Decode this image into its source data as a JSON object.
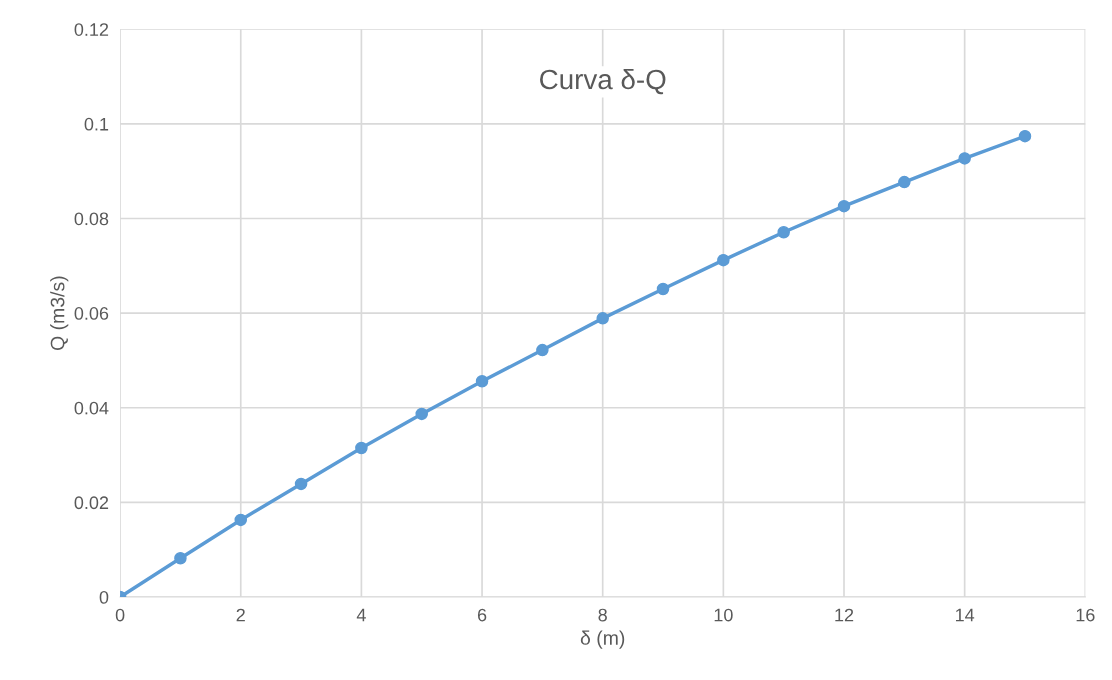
{
  "chart_data": {
    "type": "line",
    "title": "Curva δ-Q",
    "xlabel": "δ (m)",
    "ylabel": "Q (m3/s)",
    "x": [
      0,
      1,
      2,
      3,
      4,
      5,
      6,
      7,
      8,
      9,
      10,
      11,
      12,
      13,
      14,
      15
    ],
    "series": [
      {
        "color": "#5b9bd5",
        "values": [
          0,
          0.0082,
          0.0163,
          0.0239,
          0.0315,
          0.0387,
          0.0456,
          0.0522,
          0.0589,
          0.0651,
          0.0712,
          0.0771,
          0.0826,
          0.0877,
          0.0927,
          0.0974
        ]
      }
    ],
    "xlim": [
      0,
      16
    ],
    "xticks": [
      0,
      2,
      4,
      6,
      8,
      10,
      12,
      14,
      16
    ],
    "ylim": [
      0,
      0.12
    ],
    "yticks": [
      0,
      0.02,
      0.04,
      0.06,
      0.08,
      {
        "value": 0.1,
        "label": "0.1"
      },
      0.12
    ],
    "grid": true,
    "marker": "circle",
    "line_style": "solid"
  }
}
